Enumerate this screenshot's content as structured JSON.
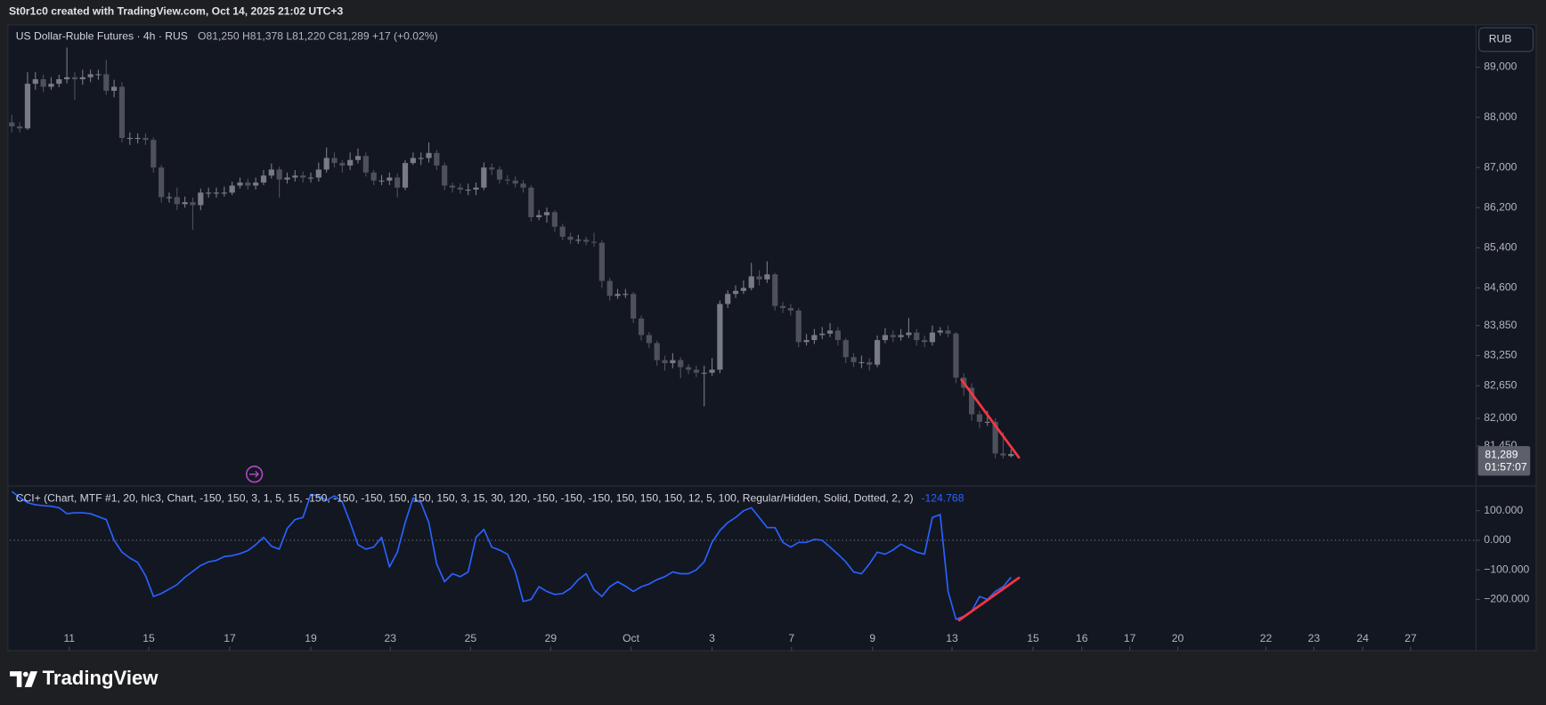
{
  "header": "St0r1c0 created with TradingView.com, Oct 14, 2025 21:02 UTC+3",
  "footer": "TradingView",
  "chart_data": [
    {
      "type": "candlestick",
      "title": "US Dollar-Ruble Futures · 4h · RUS",
      "subtitle": "O81,250  H81,378  L81,220  C81,289  +17 (+0.02%)",
      "currency": "RUB",
      "price_label": "81,289",
      "countdown": "01:57:07",
      "up_color": "#787b86",
      "down_color": "#4e515b",
      "grid": false,
      "xlim": [
        -0.25,
        186.1
      ],
      "ylim": [
        80670,
        89845
      ],
      "yticks": [
        {
          "value": 89000,
          "label": "89,000"
        },
        {
          "value": 88000,
          "label": "88,000"
        },
        {
          "value": 87000,
          "label": "87,000"
        },
        {
          "value": 86200,
          "label": "86,200"
        },
        {
          "value": 85400,
          "label": "85,400"
        },
        {
          "value": 84600,
          "label": "84,600"
        },
        {
          "value": 83850,
          "label": "83,850"
        },
        {
          "value": 83250,
          "label": "83,250"
        },
        {
          "value": 82650,
          "label": "82,650"
        },
        {
          "value": 82000,
          "label": "82,000"
        },
        {
          "value": 81450,
          "label": "81,450"
        }
      ],
      "open": [
        87900,
        87820,
        87780,
        88670,
        88760,
        88610,
        88670,
        88760,
        88800,
        88760,
        88800,
        88860,
        88860,
        88530,
        88610,
        87590,
        87590,
        87590,
        87550,
        87000,
        86410,
        86410,
        86270,
        86310,
        86250,
        86500,
        86500,
        86500,
        86500,
        86640,
        86700,
        86640,
        86700,
        86840,
        86960,
        86760,
        86800,
        86840,
        86800,
        86800,
        86960,
        87190,
        87090,
        87040,
        87150,
        87230,
        86900,
        86740,
        86740,
        86800,
        86600,
        87090,
        87190,
        87190,
        87290,
        87040,
        86640,
        86600,
        86560,
        86560,
        86600,
        87000,
        86960,
        86760,
        86740,
        86680,
        86600,
        86010,
        86050,
        86110,
        85820,
        85620,
        85560,
        85560,
        85520,
        85500,
        84740,
        84440,
        84480,
        84480,
        83990,
        83660,
        83500,
        83160,
        83100,
        83160,
        83020,
        82970,
        82910,
        82910,
        82970,
        84280,
        84480,
        84540,
        84600,
        84830,
        84770,
        84870,
        84240,
        84200,
        84150,
        83520,
        83560,
        83660,
        83690,
        83750,
        83560,
        83220,
        83120,
        83120,
        83070,
        83560,
        83660,
        83620,
        83660,
        83710,
        83560,
        83520,
        83710,
        83750,
        83690,
        82810,
        82610,
        82080,
        81930,
        81930,
        81300,
        81250
      ],
      "high": [
        88050,
        87900,
        88900,
        88900,
        88850,
        88800,
        88850,
        89390,
        88900,
        88950,
        88950,
        88950,
        89150,
        88750,
        88700,
        87700,
        87680,
        87680,
        87600,
        87050,
        86500,
        86600,
        86420,
        86400,
        86580,
        86600,
        86600,
        86620,
        86720,
        86800,
        86780,
        86800,
        86950,
        87080,
        87020,
        86900,
        86950,
        86920,
        86900,
        87100,
        87400,
        87300,
        87150,
        87300,
        87380,
        87300,
        86950,
        86850,
        86900,
        86880,
        87150,
        87300,
        87300,
        87500,
        87350,
        87100,
        86700,
        86680,
        86680,
        86700,
        87100,
        87080,
        87020,
        86850,
        86820,
        86750,
        86650,
        86150,
        86200,
        86150,
        85880,
        85700,
        85660,
        85620,
        85700,
        85550,
        84800,
        84580,
        84580,
        84520,
        84050,
        83720,
        83550,
        83250,
        83300,
        83220,
        83080,
        83050,
        83050,
        83200,
        84350,
        84550,
        84650,
        84750,
        85100,
        84950,
        85130,
        84900,
        84320,
        84280,
        84200,
        83680,
        83780,
        83820,
        83900,
        83820,
        83600,
        83300,
        83250,
        83200,
        83650,
        83800,
        83750,
        83780,
        84000,
        83780,
        83650,
        83850,
        83820,
        83850,
        83720,
        82900,
        82700,
        82150,
        82150,
        82000,
        81720,
        81378
      ],
      "low": [
        87700,
        87700,
        87750,
        88550,
        88500,
        88550,
        88600,
        88680,
        88350,
        88650,
        88700,
        88750,
        88450,
        88400,
        87500,
        87450,
        87480,
        87450,
        86900,
        86300,
        86300,
        86150,
        86200,
        85760,
        86150,
        86400,
        86400,
        86420,
        86450,
        86580,
        86560,
        86560,
        86650,
        86780,
        86400,
        86680,
        86720,
        86700,
        86700,
        86720,
        86900,
        87000,
        86900,
        86950,
        87080,
        86820,
        86650,
        86650,
        86650,
        86400,
        86550,
        87050,
        87050,
        87100,
        86950,
        86550,
        86500,
        86480,
        86450,
        86450,
        86550,
        86850,
        86680,
        86660,
        86600,
        86500,
        85920,
        85950,
        85900,
        85720,
        85550,
        85480,
        85480,
        85450,
        85420,
        84600,
        84350,
        84380,
        84400,
        83900,
        83550,
        83400,
        83050,
        82950,
        83000,
        82800,
        82880,
        82820,
        82240,
        82850,
        82900,
        84200,
        84400,
        84480,
        84550,
        84650,
        84700,
        84150,
        84100,
        84050,
        83420,
        83450,
        83480,
        83580,
        83620,
        83450,
        83100,
        83020,
        83000,
        82950,
        83020,
        83500,
        83520,
        83550,
        83600,
        83450,
        83420,
        83450,
        83650,
        83620,
        82700,
        82450,
        81950,
        81800,
        81850,
        81200,
        81200,
        81220
      ],
      "close": [
        87820,
        87780,
        88670,
        88760,
        88610,
        88670,
        88760,
        88800,
        88760,
        88800,
        88860,
        88860,
        88530,
        88610,
        87590,
        87590,
        87590,
        87550,
        87000,
        86410,
        86410,
        86270,
        86310,
        86250,
        86500,
        86500,
        86500,
        86500,
        86640,
        86700,
        86640,
        86700,
        86840,
        86960,
        86760,
        86800,
        86840,
        86800,
        86800,
        86960,
        87190,
        87090,
        87040,
        87150,
        87230,
        86900,
        86740,
        86740,
        86800,
        86600,
        87090,
        87190,
        87190,
        87290,
        87040,
        86640,
        86600,
        86560,
        86560,
        86600,
        87000,
        86960,
        86760,
        86740,
        86680,
        86600,
        86010,
        86050,
        86110,
        85820,
        85620,
        85560,
        85560,
        85520,
        85500,
        84740,
        84440,
        84480,
        84480,
        83990,
        83660,
        83500,
        83160,
        83100,
        83160,
        83020,
        82970,
        82910,
        82910,
        82970,
        84280,
        84480,
        84540,
        84600,
        84830,
        84770,
        84870,
        84240,
        84200,
        84150,
        83520,
        83560,
        83660,
        83690,
        83750,
        83560,
        83220,
        83120,
        83120,
        83070,
        83560,
        83660,
        83620,
        83660,
        83710,
        83560,
        83520,
        83710,
        83750,
        83690,
        82810,
        82610,
        82080,
        81930,
        81930,
        81300,
        81260,
        81289
      ],
      "drawings": [
        {
          "type": "trendline",
          "color": "#f23645",
          "x": [
            120.7,
            128
          ],
          "values": [
            82770,
            81220
          ]
        }
      ]
    },
    {
      "type": "line",
      "title": "CCI+ (Chart, MTF #1, 20, hlc3, Chart, -150, 150, 3, 1, 5, 15, -150, -150, -150, 150, 150, 150, 3, 15, 30, 120, -150, -150, -150, 150, 150, 150, 12, 5, 100, Regular/Hidden, Solid, Dotted, 2, 2)",
      "grid": false,
      "xlim": [
        -0.25,
        186.1
      ],
      "ylim": [
        -293,
        180
      ],
      "yticks": [
        {
          "value": 100,
          "label": "100.000"
        },
        {
          "value": 0,
          "label": "0.000"
        },
        {
          "value": -100,
          "label": "−100.000"
        },
        {
          "value": -200,
          "label": "−200.000"
        }
      ],
      "xticks": [
        {
          "value": 7.3,
          "label": "11"
        },
        {
          "value": 17.4,
          "label": "15"
        },
        {
          "value": 27.7,
          "label": "17"
        },
        {
          "value": 38.0,
          "label": "19"
        },
        {
          "value": 48.1,
          "label": "23"
        },
        {
          "value": 58.3,
          "label": "25"
        },
        {
          "value": 68.5,
          "label": "29"
        },
        {
          "value": 78.7,
          "label": "Oct"
        },
        {
          "value": 89.0,
          "label": "3"
        },
        {
          "value": 99.1,
          "label": "7"
        },
        {
          "value": 109.4,
          "label": "9"
        },
        {
          "value": 119.5,
          "label": "13"
        },
        {
          "value": 129.8,
          "label": "15"
        },
        {
          "value": 136.0,
          "label": "16"
        },
        {
          "value": 142.1,
          "label": "17"
        },
        {
          "value": 148.2,
          "label": "20"
        },
        {
          "value": 159.4,
          "label": "22"
        },
        {
          "value": 165.5,
          "label": "23"
        },
        {
          "value": 171.7,
          "label": "24"
        },
        {
          "value": 177.8,
          "label": "27"
        }
      ],
      "hlines": [
        0
      ],
      "series": [
        {
          "color": "#2962ff",
          "values": [
            165,
            145,
            127,
            120,
            117,
            115,
            110,
            90,
            93,
            93,
            90,
            80,
            70,
            0,
            -40,
            -60,
            -75,
            -120,
            -190,
            -180,
            -165,
            -150,
            -125,
            -105,
            -85,
            -73,
            -68,
            -55,
            -52,
            -45,
            -35,
            -15,
            10,
            -20,
            -30,
            40,
            70,
            77,
            155,
            150,
            135,
            150,
            130,
            60,
            -15,
            -30,
            -23,
            10,
            -90,
            -40,
            60,
            143,
            127,
            60,
            -80,
            -140,
            -113,
            -123,
            -107,
            10,
            37,
            -23,
            -33,
            -47,
            -107,
            -207,
            -200,
            -157,
            -173,
            -183,
            -180,
            -163,
            -133,
            -113,
            -167,
            -190,
            -157,
            -140,
            -155,
            -173,
            -157,
            -148,
            -133,
            -123,
            -107,
            -113,
            -113,
            -100,
            -73,
            -7,
            33,
            60,
            77,
            100,
            110,
            77,
            43,
            43,
            -7,
            -23,
            -7,
            -7,
            3,
            0,
            -23,
            -47,
            -73,
            -107,
            -113,
            -80,
            -40,
            -47,
            -33,
            -13,
            -27,
            -40,
            -47,
            77,
            87,
            -173,
            -267,
            -257,
            -240,
            -190,
            -200,
            -173,
            -157,
            -124.768
          ]
        }
      ],
      "drawings": [
        {
          "type": "trendline",
          "color": "#f23645",
          "x": [
            120.4,
            128
          ],
          "values": [
            -270,
            -127
          ]
        }
      ]
    }
  ]
}
